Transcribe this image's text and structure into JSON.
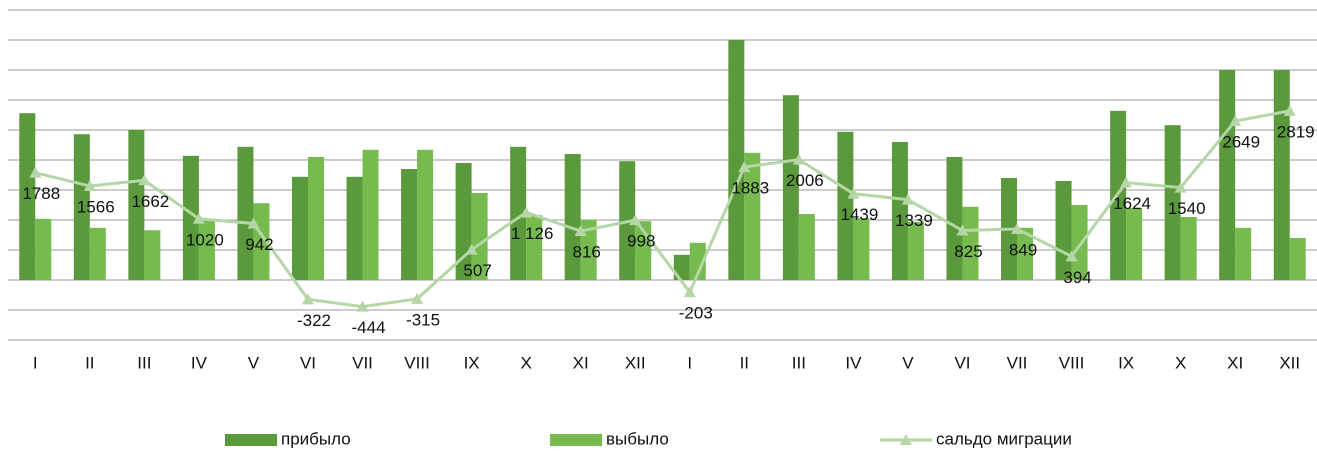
{
  "chart_data": {
    "type": "bar-line",
    "categories": [
      "I",
      "II",
      "III",
      "IV",
      "V",
      "VI",
      "VII",
      "VIII",
      "IX",
      "X",
      "XI",
      "XII",
      "I",
      "II",
      "III",
      "IV",
      "V",
      "VI",
      "VII",
      "VIII",
      "IX",
      "X",
      "XI",
      "XII"
    ],
    "series": [
      {
        "name": "прибыло",
        "color": "#5b9a3c",
        "type": "bar",
        "values": [
          2780,
          2430,
          2500,
          2070,
          2220,
          1720,
          1720,
          1850,
          1950,
          2220,
          2100,
          1980,
          420,
          4000,
          3080,
          2470,
          2300,
          2050,
          1700,
          1650,
          2820,
          2580,
          3500,
          3500
        ]
      },
      {
        "name": "выбыло",
        "color": "#77bb4f",
        "type": "bar",
        "values": [
          1020,
          870,
          830,
          1000,
          1280,
          2050,
          2170,
          2170,
          1450,
          1080,
          1000,
          980,
          620,
          2120,
          1100,
          1030,
          970,
          1220,
          870,
          1250,
          1200,
          1050,
          870,
          700
        ]
      },
      {
        "name": "сальдо миграции",
        "color": "#b5d6a6",
        "type": "line",
        "values": [
          1788,
          1566,
          1662,
          1020,
          942,
          -322,
          -444,
          -315,
          507,
          1126,
          816,
          998,
          -203,
          1883,
          2006,
          1439,
          1339,
          825,
          849,
          394,
          1624,
          1540,
          2649,
          2819
        ],
        "value_labels": [
          "1788",
          "1566",
          "1662",
          "1020",
          "942",
          "-322",
          "-444",
          "-315",
          "507",
          "1 126",
          "816",
          "998",
          "-203",
          "1883",
          "2006",
          "1439",
          "1339",
          "825",
          "849",
          "394",
          "1624",
          "1540",
          "2649",
          "2819"
        ]
      }
    ],
    "ylim": [
      -1000,
      4500
    ],
    "yticks": [
      -1000,
      -500,
      0,
      500,
      1000,
      1500,
      2000,
      2500,
      3000,
      3500,
      4000,
      4500
    ],
    "grid": true,
    "legend": "bottom"
  }
}
